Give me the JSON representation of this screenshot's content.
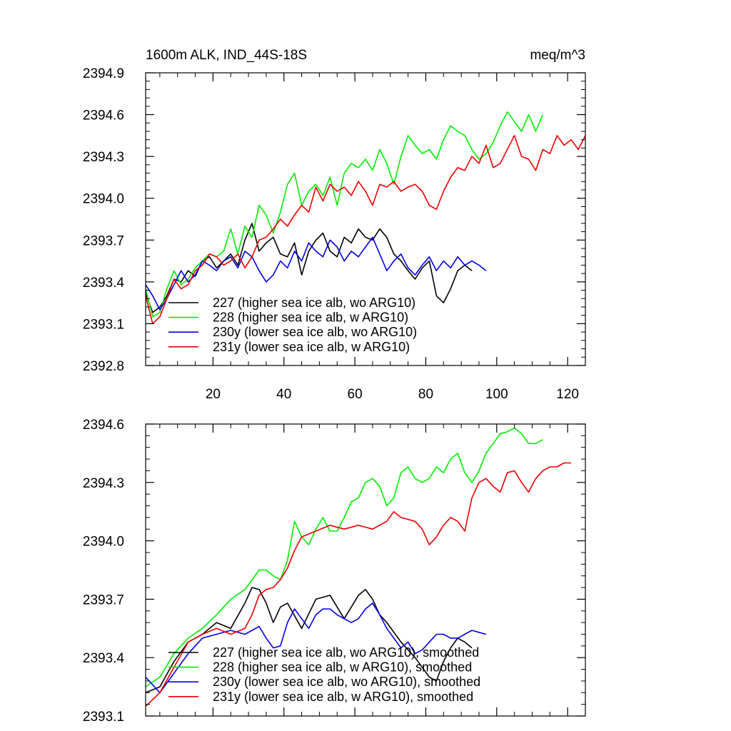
{
  "figure": {
    "title_left": "1600m ALK, IND_44S-18S",
    "title_right": "meq/m^3"
  },
  "colors": {
    "227": "#000000",
    "228": "#00ee00",
    "230y": "#0000ee",
    "231y": "#ee0000"
  },
  "chart_data": [
    {
      "type": "line",
      "title": "1600m ALK, IND_44S-18S",
      "units": "meq/m^3",
      "xlim": [
        1,
        125
      ],
      "ylim": [
        2392.8,
        2394.9
      ],
      "xticks": [
        20,
        40,
        60,
        80,
        100,
        120
      ],
      "xtick_labels": [
        "20",
        "40",
        "60",
        "80",
        "100",
        "120"
      ],
      "yticks": [
        2392.8,
        2393.1,
        2393.4,
        2393.7,
        2394.0,
        2394.3,
        2394.6,
        2394.9
      ],
      "ytick_labels": [
        "2392.8",
        "2393.1",
        "2393.4",
        "2393.7",
        "2394.0",
        "2394.3",
        "2394.6",
        "2394.9"
      ],
      "legend_position": "bottom-left",
      "series": [
        {
          "key": "227",
          "name": "227 (higher sea ice alb, wo ARG10)",
          "x": [
            1,
            3,
            5,
            7,
            9,
            11,
            13,
            15,
            17,
            19,
            21,
            23,
            25,
            27,
            29,
            31,
            33,
            35,
            37,
            39,
            41,
            43,
            45,
            47,
            49,
            51,
            53,
            55,
            57,
            59,
            61,
            63,
            65,
            67,
            69,
            71,
            73,
            75,
            77,
            79,
            81,
            83,
            85,
            87,
            89,
            91,
            93
          ],
          "y": [
            2393.32,
            2393.18,
            2393.22,
            2393.3,
            2393.42,
            2393.4,
            2393.48,
            2393.44,
            2393.55,
            2393.58,
            2393.5,
            2393.55,
            2393.6,
            2393.52,
            2393.7,
            2393.82,
            2393.62,
            2393.68,
            2393.72,
            2393.6,
            2393.58,
            2393.68,
            2393.45,
            2393.62,
            2393.7,
            2393.75,
            2393.62,
            2393.58,
            2393.72,
            2393.68,
            2393.78,
            2393.72,
            2393.7,
            2393.78,
            2393.72,
            2393.6,
            2393.55,
            2393.48,
            2393.42,
            2393.5,
            2393.55,
            2393.3,
            2393.25,
            2393.35,
            2393.48,
            2393.52,
            2393.48
          ]
        },
        {
          "key": "228",
          "name": "228 (higher sea ice alb, w ARG10)",
          "x": [
            1,
            3,
            5,
            7,
            9,
            11,
            13,
            15,
            17,
            19,
            21,
            23,
            25,
            27,
            29,
            31,
            33,
            35,
            37,
            39,
            41,
            43,
            45,
            47,
            49,
            51,
            53,
            55,
            57,
            59,
            61,
            63,
            65,
            67,
            69,
            71,
            73,
            75,
            77,
            79,
            81,
            83,
            85,
            87,
            89,
            91,
            93,
            95,
            97,
            99,
            101,
            103,
            105,
            107,
            109,
            111,
            113
          ],
          "y": [
            2393.35,
            2393.15,
            2393.18,
            2393.35,
            2393.48,
            2393.38,
            2393.42,
            2393.5,
            2393.55,
            2393.6,
            2393.58,
            2393.62,
            2393.78,
            2393.6,
            2393.8,
            2393.72,
            2393.95,
            2393.88,
            2393.75,
            2393.9,
            2394.1,
            2394.18,
            2393.95,
            2394.05,
            2394.1,
            2394.02,
            2394.15,
            2393.95,
            2394.18,
            2394.25,
            2394.22,
            2394.28,
            2394.2,
            2394.35,
            2394.25,
            2394.1,
            2394.3,
            2394.45,
            2394.38,
            2394.32,
            2394.35,
            2394.28,
            2394.42,
            2394.52,
            2394.48,
            2394.45,
            2394.35,
            2394.28,
            2394.32,
            2394.4,
            2394.52,
            2394.62,
            2394.55,
            2394.48,
            2394.6,
            2394.48,
            2394.6
          ]
        },
        {
          "key": "230y",
          "name": "230y (lower sea ice alb, wo ARG10)",
          "x": [
            1,
            3,
            5,
            7,
            9,
            11,
            13,
            15,
            17,
            19,
            21,
            23,
            25,
            27,
            29,
            31,
            33,
            35,
            37,
            39,
            41,
            43,
            45,
            47,
            49,
            51,
            53,
            55,
            57,
            59,
            61,
            63,
            65,
            67,
            69,
            71,
            73,
            75,
            77,
            79,
            81,
            83,
            85,
            87,
            89,
            91,
            93,
            95,
            97
          ],
          "y": [
            2393.38,
            2393.3,
            2393.2,
            2393.28,
            2393.38,
            2393.48,
            2393.4,
            2393.45,
            2393.55,
            2393.52,
            2393.48,
            2393.55,
            2393.58,
            2393.5,
            2393.62,
            2393.58,
            2393.48,
            2393.4,
            2393.45,
            2393.55,
            2393.5,
            2393.62,
            2393.55,
            2393.68,
            2393.62,
            2393.58,
            2393.7,
            2393.65,
            2393.55,
            2393.62,
            2393.58,
            2393.65,
            2393.72,
            2393.6,
            2393.48,
            2393.55,
            2393.6,
            2393.5,
            2393.45,
            2393.52,
            2393.58,
            2393.48,
            2393.55,
            2393.5,
            2393.58,
            2393.52,
            2393.55,
            2393.52,
            2393.48
          ]
        },
        {
          "key": "231y",
          "name": "231y (lower sea ice alb, w ARG10)",
          "x": [
            1,
            3,
            5,
            7,
            9,
            11,
            13,
            15,
            17,
            19,
            21,
            23,
            25,
            27,
            29,
            31,
            33,
            35,
            37,
            39,
            41,
            43,
            45,
            47,
            49,
            51,
            53,
            55,
            57,
            59,
            61,
            63,
            65,
            67,
            69,
            71,
            73,
            75,
            77,
            79,
            81,
            83,
            85,
            87,
            89,
            91,
            93,
            95,
            97,
            99,
            101,
            103,
            105,
            107,
            109,
            111,
            113,
            115,
            117,
            119,
            121,
            123,
            125
          ],
          "y": [
            2393.3,
            2393.1,
            2393.15,
            2393.28,
            2393.42,
            2393.35,
            2393.38,
            2393.48,
            2393.52,
            2393.6,
            2393.58,
            2393.52,
            2393.55,
            2393.6,
            2393.5,
            2393.58,
            2393.7,
            2393.72,
            2393.78,
            2393.85,
            2393.8,
            2393.88,
            2393.95,
            2393.9,
            2394.08,
            2393.98,
            2394.1,
            2394.05,
            2394.08,
            2394.02,
            2394.12,
            2394.05,
            2393.95,
            2394.1,
            2394.08,
            2394.12,
            2394.05,
            2394.08,
            2394.1,
            2394.05,
            2393.95,
            2393.92,
            2394.05,
            2394.15,
            2394.22,
            2394.2,
            2394.3,
            2394.25,
            2394.38,
            2394.22,
            2394.25,
            2394.35,
            2394.45,
            2394.3,
            2394.28,
            2394.2,
            2394.35,
            2394.32,
            2394.45,
            2394.38,
            2394.42,
            2394.35,
            2394.45
          ]
        }
      ]
    },
    {
      "type": "line",
      "xlim": [
        1,
        125
      ],
      "ylim": [
        2393.1,
        2394.6
      ],
      "xticks": [
        20,
        40,
        60,
        80,
        100,
        120
      ],
      "xtick_labels": [],
      "yticks": [
        2393.1,
        2393.4,
        2393.7,
        2394.0,
        2394.3,
        2394.6
      ],
      "ytick_labels": [
        "2393.1",
        "2393.4",
        "2393.7",
        "2394.0",
        "2394.3",
        "2394.6"
      ],
      "legend_position": "bottom-left",
      "series": [
        {
          "key": "227",
          "name": "227 (higher sea ice alb, wo ARG10), smoothed",
          "x": [
            1,
            5,
            9,
            13,
            17,
            21,
            25,
            29,
            31,
            33,
            35,
            37,
            39,
            41,
            45,
            49,
            53,
            57,
            61,
            63,
            65,
            67,
            69,
            73,
            77,
            79,
            81,
            83,
            85,
            87,
            89,
            91,
            93
          ],
          "y": [
            2393.22,
            2393.25,
            2393.38,
            2393.48,
            2393.52,
            2393.58,
            2393.55,
            2393.68,
            2393.76,
            2393.75,
            2393.68,
            2393.58,
            2393.66,
            2393.68,
            2393.55,
            2393.7,
            2393.72,
            2393.6,
            2393.72,
            2393.75,
            2393.7,
            2393.62,
            2393.58,
            2393.48,
            2393.4,
            2393.35,
            2393.3,
            2393.28,
            2393.38,
            2393.45,
            2393.5,
            2393.48,
            2393.45
          ]
        },
        {
          "key": "228",
          "name": "228 (higher sea ice alb, w ARG10), smoothed",
          "x": [
            1,
            5,
            9,
            13,
            17,
            21,
            25,
            29,
            33,
            35,
            37,
            39,
            41,
            43,
            45,
            47,
            49,
            51,
            53,
            55,
            57,
            59,
            61,
            63,
            65,
            67,
            69,
            71,
            73,
            75,
            77,
            79,
            81,
            83,
            85,
            87,
            89,
            91,
            93,
            95,
            97,
            99,
            101,
            103,
            105,
            107,
            109,
            111,
            113
          ],
          "y": [
            2393.25,
            2393.3,
            2393.42,
            2393.5,
            2393.55,
            2393.62,
            2393.7,
            2393.75,
            2393.85,
            2393.85,
            2393.82,
            2393.8,
            2393.9,
            2394.1,
            2394.02,
            2393.98,
            2394.06,
            2394.12,
            2394.05,
            2394.05,
            2394.12,
            2394.2,
            2394.22,
            2394.3,
            2394.32,
            2394.28,
            2394.18,
            2394.22,
            2394.35,
            2394.38,
            2394.32,
            2394.3,
            2394.32,
            2394.38,
            2394.35,
            2394.42,
            2394.45,
            2394.35,
            2394.3,
            2394.36,
            2394.45,
            2394.5,
            2394.55,
            2394.56,
            2394.58,
            2394.55,
            2394.5,
            2394.5,
            2394.52
          ]
        },
        {
          "key": "230y",
          "name": "230y (lower sea ice alb, wo ARG10), smoothed",
          "x": [
            1,
            5,
            9,
            13,
            17,
            21,
            25,
            29,
            33,
            35,
            37,
            39,
            41,
            43,
            45,
            47,
            49,
            51,
            53,
            55,
            57,
            59,
            61,
            63,
            65,
            67,
            69,
            71,
            73,
            75,
            77,
            79,
            81,
            83,
            85,
            87,
            89,
            91,
            93,
            95,
            97
          ],
          "y": [
            2393.3,
            2393.22,
            2393.32,
            2393.42,
            2393.5,
            2393.52,
            2393.54,
            2393.52,
            2393.56,
            2393.5,
            2393.45,
            2393.46,
            2393.58,
            2393.65,
            2393.6,
            2393.55,
            2393.62,
            2393.65,
            2393.65,
            2393.62,
            2393.6,
            2393.58,
            2393.6,
            2393.65,
            2393.68,
            2393.62,
            2393.55,
            2393.5,
            2393.45,
            2393.48,
            2393.42,
            2393.44,
            2393.48,
            2393.52,
            2393.52,
            2393.5,
            2393.5,
            2393.52,
            2393.54,
            2393.53,
            2393.52
          ]
        },
        {
          "key": "231y",
          "name": "231y (lower sea ice alb, w ARG10), smoothed",
          "x": [
            1,
            5,
            9,
            13,
            17,
            21,
            25,
            29,
            31,
            33,
            35,
            37,
            39,
            41,
            43,
            45,
            49,
            53,
            57,
            61,
            65,
            69,
            71,
            73,
            77,
            79,
            81,
            83,
            85,
            87,
            89,
            91,
            93,
            95,
            97,
            99,
            101,
            103,
            105,
            107,
            109,
            111,
            113,
            115,
            117,
            119,
            121
          ],
          "y": [
            2393.15,
            2393.22,
            2393.35,
            2393.48,
            2393.52,
            2393.55,
            2393.52,
            2393.55,
            2393.62,
            2393.72,
            2393.75,
            2393.76,
            2393.8,
            2393.86,
            2393.95,
            2394.02,
            2394.05,
            2394.08,
            2394.06,
            2394.08,
            2394.06,
            2394.1,
            2394.15,
            2394.12,
            2394.1,
            2394.06,
            2393.98,
            2394.02,
            2394.08,
            2394.12,
            2394.1,
            2394.05,
            2394.22,
            2394.3,
            2394.32,
            2394.28,
            2394.25,
            2394.35,
            2394.36,
            2394.3,
            2394.25,
            2394.32,
            2394.36,
            2394.38,
            2394.38,
            2394.4,
            2394.4
          ]
        }
      ]
    }
  ]
}
